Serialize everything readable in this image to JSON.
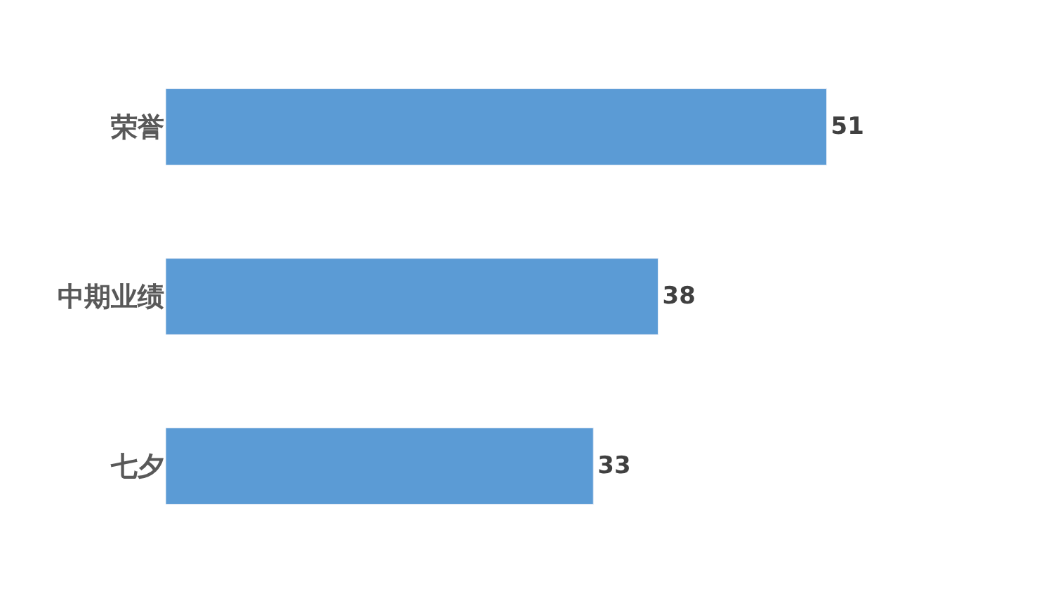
{
  "chart_data": {
    "type": "bar",
    "orientation": "horizontal",
    "categories": [
      "荣誉",
      "中期业绩",
      "七夕"
    ],
    "values": [
      51,
      38,
      33
    ],
    "color": "#5b9bd5",
    "data_labels": true
  }
}
